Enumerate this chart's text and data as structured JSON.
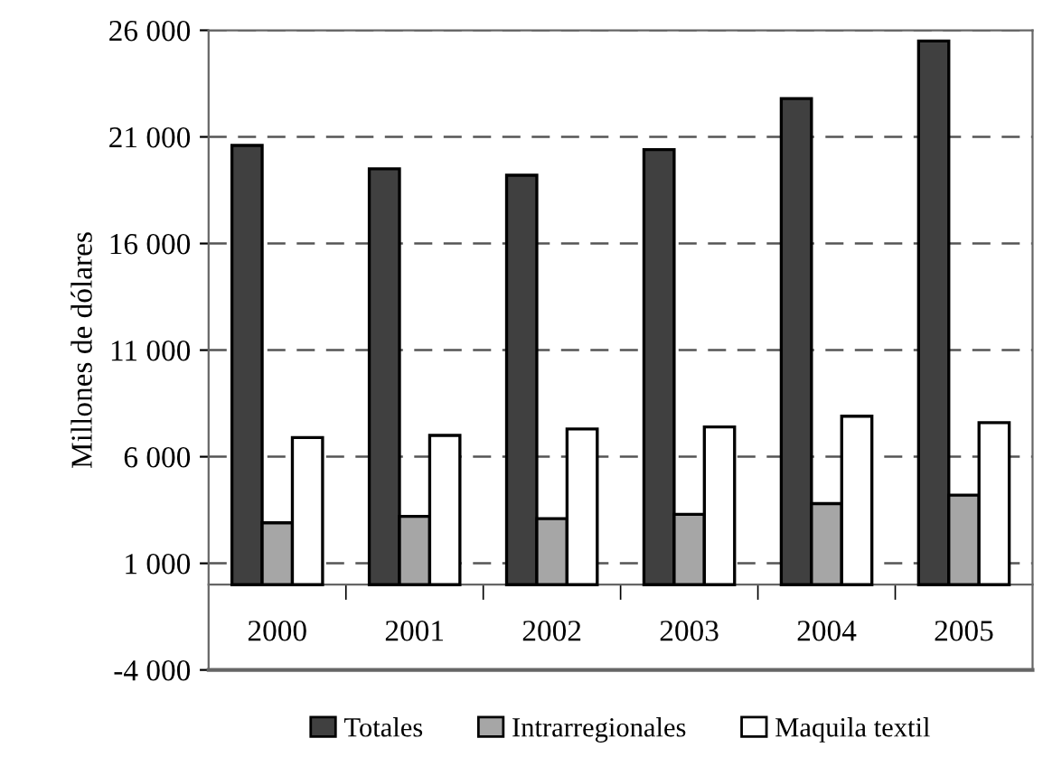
{
  "chart_data": {
    "type": "bar",
    "ylabel": "Millones de dólares",
    "categories": [
      "2000",
      "2001",
      "2002",
      "2003",
      "2004",
      "2005"
    ],
    "series": [
      {
        "name": "Totales",
        "color": "#404040",
        "values": [
          20600,
          19500,
          19200,
          20400,
          22800,
          25500
        ]
      },
      {
        "name": "Intrarregionales",
        "color": "#a6a6a6",
        "values": [
          2900,
          3200,
          3100,
          3300,
          3800,
          4200
        ]
      },
      {
        "name": "Maquila textil",
        "color": "#ffffff",
        "values": [
          6900,
          7000,
          7300,
          7400,
          7900,
          7600
        ]
      }
    ],
    "ylim": [
      -4000,
      26000
    ],
    "yticks": [
      {
        "value": -4000,
        "label": "-4 000"
      },
      {
        "value": 1000,
        "label": "1 000"
      },
      {
        "value": 6000,
        "label": "6 000"
      },
      {
        "value": 11000,
        "label": "11 000"
      },
      {
        "value": 16000,
        "label": "16 000"
      },
      {
        "value": 21000,
        "label": "21 000"
      },
      {
        "value": 26000,
        "label": "26 000"
      }
    ],
    "grid": "y",
    "legend": "bottom"
  }
}
